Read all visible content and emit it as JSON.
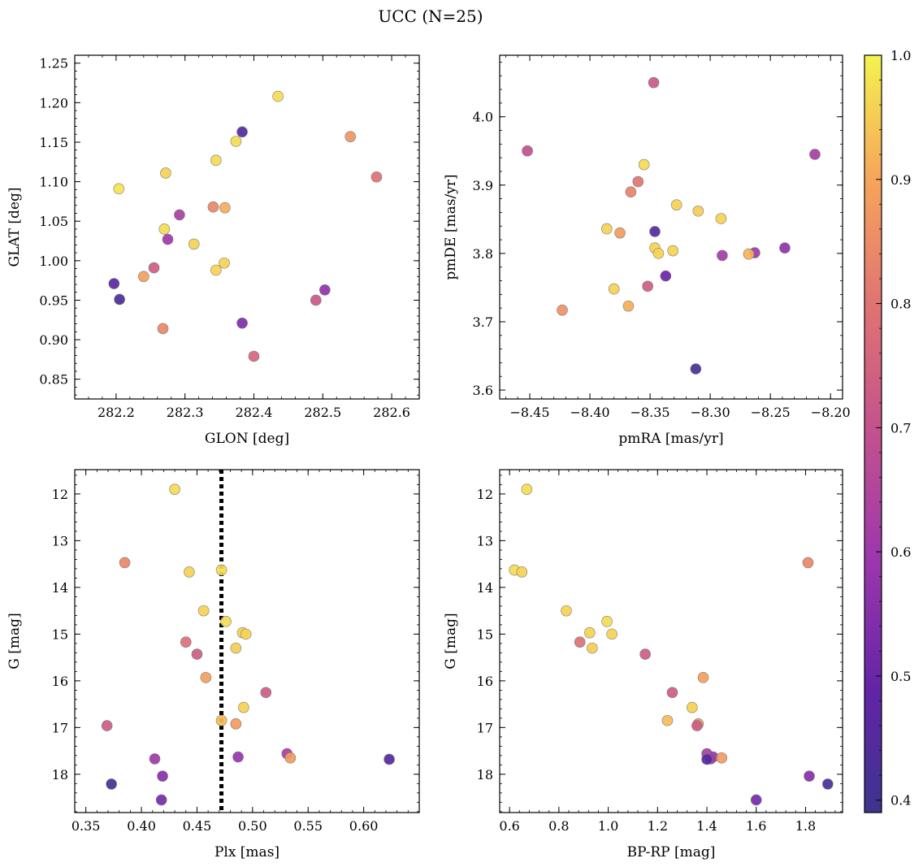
{
  "title": "UCC (N=25)",
  "chart_data": [
    {
      "type": "scatter",
      "xlabel": "GLON [deg]",
      "ylabel": "GLAT [deg]",
      "xlim": [
        282.14,
        282.64
      ],
      "ylim": [
        0.825,
        1.26
      ],
      "xticks": [
        282.2,
        282.3,
        282.4,
        282.5,
        282.6
      ],
      "xtick_labels": [
        "282.2",
        "282.3",
        "282.4",
        "282.5",
        "282.6"
      ],
      "yticks": [
        0.85,
        0.9,
        0.95,
        1.0,
        1.05,
        1.1,
        1.15,
        1.2,
        1.25
      ],
      "ytick_labels": [
        "0.85",
        "0.90",
        "0.95",
        "1.00",
        "1.05",
        "1.10",
        "1.15",
        "1.20",
        "1.25"
      ],
      "points": [
        {
          "x": 282.435,
          "y": 1.208,
          "c": 0.97
        },
        {
          "x": 282.383,
          "y": 1.163,
          "c": 0.45
        },
        {
          "x": 282.54,
          "y": 1.157,
          "c": 0.87
        },
        {
          "x": 282.374,
          "y": 1.151,
          "c": 0.97
        },
        {
          "x": 282.345,
          "y": 1.127,
          "c": 0.97
        },
        {
          "x": 282.272,
          "y": 1.111,
          "c": 0.96
        },
        {
          "x": 282.578,
          "y": 1.106,
          "c": 0.79
        },
        {
          "x": 282.204,
          "y": 1.091,
          "c": 0.98
        },
        {
          "x": 282.341,
          "y": 1.068,
          "c": 0.84
        },
        {
          "x": 282.358,
          "y": 1.067,
          "c": 0.91
        },
        {
          "x": 282.292,
          "y": 1.058,
          "c": 0.63
        },
        {
          "x": 282.27,
          "y": 1.04,
          "c": 0.97
        },
        {
          "x": 282.275,
          "y": 1.027,
          "c": 0.6
        },
        {
          "x": 282.313,
          "y": 1.021,
          "c": 0.96
        },
        {
          "x": 282.357,
          "y": 0.997,
          "c": 0.96
        },
        {
          "x": 282.255,
          "y": 0.991,
          "c": 0.73
        },
        {
          "x": 282.345,
          "y": 0.988,
          "c": 0.96
        },
        {
          "x": 282.24,
          "y": 0.98,
          "c": 0.89
        },
        {
          "x": 282.197,
          "y": 0.971,
          "c": 0.47
        },
        {
          "x": 282.503,
          "y": 0.963,
          "c": 0.57
        },
        {
          "x": 282.205,
          "y": 0.951,
          "c": 0.42
        },
        {
          "x": 282.49,
          "y": 0.95,
          "c": 0.72
        },
        {
          "x": 282.383,
          "y": 0.921,
          "c": 0.54
        },
        {
          "x": 282.268,
          "y": 0.914,
          "c": 0.84
        },
        {
          "x": 282.4,
          "y": 0.879,
          "c": 0.76
        }
      ]
    },
    {
      "type": "scatter",
      "xlabel": "pmRA [mas/yr]",
      "ylabel": "pmDE [mas/yr]",
      "xlim": [
        -8.475,
        -8.19
      ],
      "ylim": [
        3.587,
        4.09
      ],
      "xticks": [
        -8.45,
        -8.4,
        -8.35,
        -8.3,
        -8.25,
        -8.2
      ],
      "xtick_labels": [
        "−8.45",
        "−8.40",
        "−8.35",
        "−8.30",
        "−8.25",
        "−8.20"
      ],
      "yticks": [
        3.6,
        3.7,
        3.8,
        3.9,
        4.0
      ],
      "ytick_labels": [
        "3.6",
        "3.7",
        "3.8",
        "3.9",
        "4.0"
      ],
      "points": [
        {
          "x": -8.347,
          "y": 4.05,
          "c": 0.72
        },
        {
          "x": -8.452,
          "y": 3.95,
          "c": 0.69
        },
        {
          "x": -8.213,
          "y": 3.945,
          "c": 0.62
        },
        {
          "x": -8.355,
          "y": 3.93,
          "c": 0.97
        },
        {
          "x": -8.36,
          "y": 3.905,
          "c": 0.8
        },
        {
          "x": -8.366,
          "y": 3.89,
          "c": 0.83
        },
        {
          "x": -8.328,
          "y": 3.871,
          "c": 0.96
        },
        {
          "x": -8.31,
          "y": 3.862,
          "c": 0.95
        },
        {
          "x": -8.291,
          "y": 3.851,
          "c": 0.96
        },
        {
          "x": -8.386,
          "y": 3.836,
          "c": 0.96
        },
        {
          "x": -8.346,
          "y": 3.832,
          "c": 0.45
        },
        {
          "x": -8.375,
          "y": 3.83,
          "c": 0.88
        },
        {
          "x": -8.346,
          "y": 3.808,
          "c": 0.96
        },
        {
          "x": -8.238,
          "y": 3.808,
          "c": 0.57
        },
        {
          "x": -8.331,
          "y": 3.804,
          "c": 0.96
        },
        {
          "x": -8.343,
          "y": 3.8,
          "c": 0.96
        },
        {
          "x": -8.263,
          "y": 3.801,
          "c": 0.6
        },
        {
          "x": -8.268,
          "y": 3.799,
          "c": 0.92
        },
        {
          "x": -8.29,
          "y": 3.797,
          "c": 0.61
        },
        {
          "x": -8.337,
          "y": 3.767,
          "c": 0.5
        },
        {
          "x": -8.352,
          "y": 3.752,
          "c": 0.73
        },
        {
          "x": -8.38,
          "y": 3.748,
          "c": 0.96
        },
        {
          "x": -8.368,
          "y": 3.723,
          "c": 0.91
        },
        {
          "x": -8.423,
          "y": 3.717,
          "c": 0.86
        },
        {
          "x": -8.312,
          "y": 3.631,
          "c": 0.42
        }
      ]
    },
    {
      "type": "scatter",
      "xlabel": "Plx [mas]",
      "ylabel": "G [mag]",
      "xlim": [
        0.34,
        0.65
      ],
      "ylim": [
        18.82,
        11.48
      ],
      "xticks": [
        0.35,
        0.4,
        0.45,
        0.5,
        0.55,
        0.6
      ],
      "xtick_labels": [
        "0.35",
        "0.40",
        "0.45",
        "0.50",
        "0.55",
        "0.60"
      ],
      "yticks": [
        12,
        13,
        14,
        15,
        16,
        17,
        18
      ],
      "ytick_labels": [
        "12",
        "13",
        "14",
        "15",
        "16",
        "17",
        "18"
      ],
      "vline": 0.472,
      "points": [
        {
          "x": 0.43,
          "y": 11.9,
          "c": 0.97
        },
        {
          "x": 0.472,
          "y": 13.63,
          "c": 0.97
        },
        {
          "x": 0.385,
          "y": 13.47,
          "c": 0.84
        },
        {
          "x": 0.443,
          "y": 13.67,
          "c": 0.96
        },
        {
          "x": 0.456,
          "y": 14.5,
          "c": 0.96
        },
        {
          "x": 0.476,
          "y": 14.73,
          "c": 0.97
        },
        {
          "x": 0.491,
          "y": 14.97,
          "c": 0.96
        },
        {
          "x": 0.494,
          "y": 15.0,
          "c": 0.96
        },
        {
          "x": 0.44,
          "y": 15.17,
          "c": 0.79
        },
        {
          "x": 0.485,
          "y": 15.3,
          "c": 0.95
        },
        {
          "x": 0.45,
          "y": 15.43,
          "c": 0.73
        },
        {
          "x": 0.458,
          "y": 15.93,
          "c": 0.89
        },
        {
          "x": 0.512,
          "y": 16.25,
          "c": 0.73
        },
        {
          "x": 0.492,
          "y": 16.57,
          "c": 0.96
        },
        {
          "x": 0.472,
          "y": 16.85,
          "c": 0.93
        },
        {
          "x": 0.485,
          "y": 16.92,
          "c": 0.88
        },
        {
          "x": 0.369,
          "y": 16.96,
          "c": 0.73
        },
        {
          "x": 0.531,
          "y": 17.56,
          "c": 0.62
        },
        {
          "x": 0.487,
          "y": 17.63,
          "c": 0.58
        },
        {
          "x": 0.534,
          "y": 17.65,
          "c": 0.88
        },
        {
          "x": 0.412,
          "y": 17.67,
          "c": 0.6
        },
        {
          "x": 0.623,
          "y": 17.68,
          "c": 0.45
        },
        {
          "x": 0.419,
          "y": 18.04,
          "c": 0.55
        },
        {
          "x": 0.373,
          "y": 18.21,
          "c": 0.42
        },
        {
          "x": 0.418,
          "y": 18.55,
          "c": 0.52
        }
      ]
    },
    {
      "type": "scatter",
      "xlabel": "BP-RP [mag]",
      "ylabel": "G [mag]",
      "xlim": [
        0.56,
        1.95
      ],
      "ylim": [
        18.82,
        11.48
      ],
      "xticks": [
        0.6,
        0.8,
        1.0,
        1.2,
        1.4,
        1.6,
        1.8
      ],
      "xtick_labels": [
        "0.6",
        "0.8",
        "1.0",
        "1.2",
        "1.4",
        "1.6",
        "1.8"
      ],
      "yticks": [
        12,
        13,
        14,
        15,
        16,
        17,
        18
      ],
      "ytick_labels": [
        "12",
        "13",
        "14",
        "15",
        "16",
        "17",
        "18"
      ],
      "points": [
        {
          "x": 0.67,
          "y": 11.9,
          "c": 0.97
        },
        {
          "x": 0.62,
          "y": 13.63,
          "c": 0.97
        },
        {
          "x": 0.65,
          "y": 13.67,
          "c": 0.96
        },
        {
          "x": 1.81,
          "y": 13.47,
          "c": 0.84
        },
        {
          "x": 0.83,
          "y": 14.5,
          "c": 0.96
        },
        {
          "x": 0.995,
          "y": 14.73,
          "c": 0.97
        },
        {
          "x": 0.925,
          "y": 14.97,
          "c": 0.96
        },
        {
          "x": 1.015,
          "y": 15.0,
          "c": 0.96
        },
        {
          "x": 0.885,
          "y": 15.17,
          "c": 0.79
        },
        {
          "x": 0.935,
          "y": 15.3,
          "c": 0.95
        },
        {
          "x": 1.15,
          "y": 15.43,
          "c": 0.73
        },
        {
          "x": 1.385,
          "y": 15.93,
          "c": 0.89
        },
        {
          "x": 1.26,
          "y": 16.25,
          "c": 0.73
        },
        {
          "x": 1.34,
          "y": 16.57,
          "c": 0.96
        },
        {
          "x": 1.24,
          "y": 16.85,
          "c": 0.93
        },
        {
          "x": 1.365,
          "y": 16.92,
          "c": 0.88
        },
        {
          "x": 1.36,
          "y": 16.96,
          "c": 0.73
        },
        {
          "x": 1.4,
          "y": 17.56,
          "c": 0.62
        },
        {
          "x": 1.425,
          "y": 17.63,
          "c": 0.58
        },
        {
          "x": 1.46,
          "y": 17.65,
          "c": 0.88
        },
        {
          "x": 1.415,
          "y": 17.67,
          "c": 0.6
        },
        {
          "x": 1.4,
          "y": 17.68,
          "c": 0.45
        },
        {
          "x": 1.815,
          "y": 18.04,
          "c": 0.55
        },
        {
          "x": 1.89,
          "y": 18.21,
          "c": 0.42
        },
        {
          "x": 1.6,
          "y": 18.55,
          "c": 0.52
        }
      ]
    }
  ],
  "colorbar": {
    "cmap": "plasma",
    "range": [
      0.39,
      1.0
    ],
    "ticks": [
      0.4,
      0.5,
      0.6,
      0.7,
      0.8,
      0.9,
      1.0
    ],
    "tick_labels": [
      "0.4",
      "0.5",
      "0.6",
      "0.7",
      "0.8",
      "0.9",
      "1.0"
    ]
  }
}
